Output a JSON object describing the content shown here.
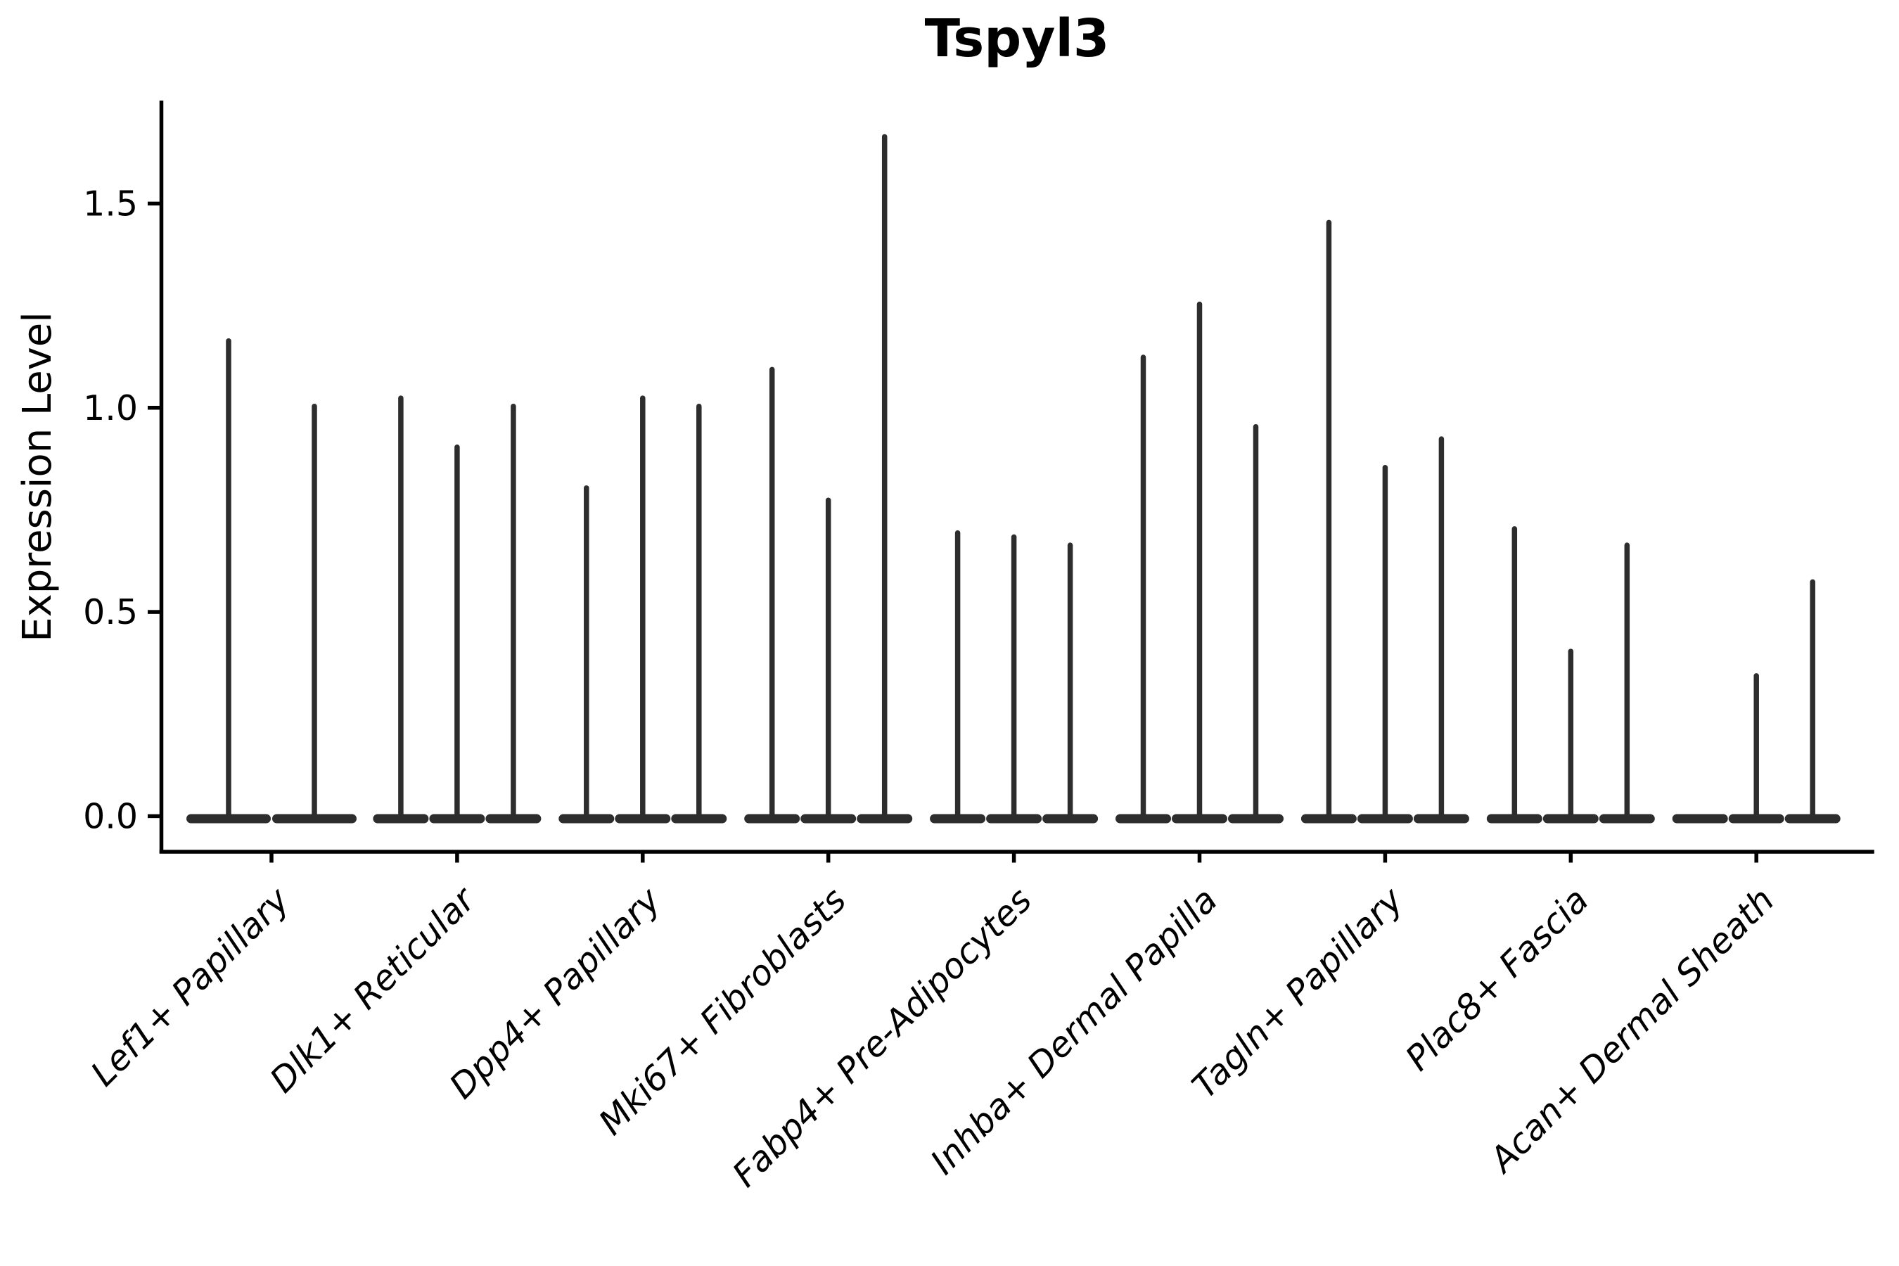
{
  "title": "Tspyl3",
  "ylabel": "Expression Level",
  "chart_data": {
    "type": "violin",
    "title": "Tspyl3",
    "xlabel": "",
    "ylabel": "Expression Level",
    "legend": "none",
    "grid": false,
    "background_color": "#ffffff",
    "violin_color": "#2d2d2d",
    "axis_color": "#000000",
    "yticks": [
      "0.0",
      "0.5",
      "1.0",
      "1.5"
    ],
    "ytick_values": [
      0.0,
      0.5,
      1.0,
      1.5
    ],
    "ylim": [
      -0.09,
      1.75
    ],
    "x_tick_rotation": 45,
    "violin_base_value": 0.0,
    "categories": [
      "Lef1+ Papillary",
      "Dlk1+ Reticular",
      "Dpp4+ Papillary",
      "Mki67+ Fibroblasts",
      "Fabp4+ Pre-Adipocytes",
      "Inhba+ Dermal Papilla",
      "Tagln+ Papillary",
      "Plac8+ Fascia",
      "Acan+ Dermal Sheath"
    ],
    "groups": [
      {
        "category": "Lef1+ Papillary",
        "spike_heights": [
          1.17,
          1.01
        ]
      },
      {
        "category": "Dlk1+ Reticular",
        "spike_heights": [
          1.03,
          0.91,
          1.01
        ]
      },
      {
        "category": "Dpp4+ Papillary",
        "spike_heights": [
          0.81,
          1.03,
          1.01
        ]
      },
      {
        "category": "Mki67+ Fibroblasts",
        "spike_heights": [
          1.1,
          0.78,
          1.67
        ]
      },
      {
        "category": "Fabp4+ Pre-Adipocytes",
        "spike_heights": [
          0.7,
          0.69,
          0.67
        ]
      },
      {
        "category": "Inhba+ Dermal Papilla",
        "spike_heights": [
          1.13,
          1.26,
          0.96
        ]
      },
      {
        "category": "Tagln+ Papillary",
        "spike_heights": [
          1.46,
          0.86,
          0.93
        ]
      },
      {
        "category": "Plac8+ Fascia",
        "spike_heights": [
          0.71,
          0.41,
          0.67
        ]
      },
      {
        "category": "Acan+ Dermal Sheath",
        "spike_heights": [
          0.0,
          0.35,
          0.58
        ]
      }
    ]
  }
}
